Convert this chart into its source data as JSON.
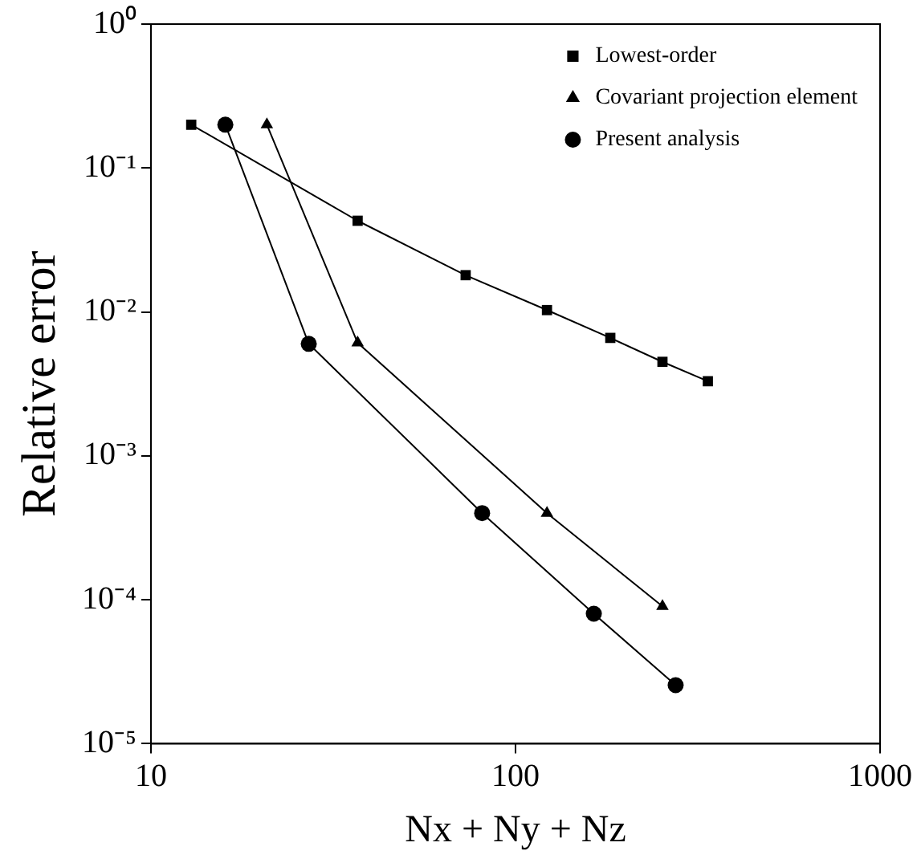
{
  "chart_data": {
    "type": "line",
    "xlabel": "Nx + Ny + Nz",
    "ylabel": "Relative error",
    "log": "xy",
    "grid": false,
    "legend": "top right",
    "line_style": "solid",
    "xlim": [
      10,
      1000
    ],
    "xticks": [
      10,
      100,
      1000
    ],
    "ylim": [
      1e-05,
      1
    ],
    "yticks": [
      {
        "value": 1,
        "label": "10⁰"
      },
      {
        "value": 0.1,
        "label": "10⁻¹"
      },
      {
        "value": 0.01,
        "label": "10⁻²"
      },
      {
        "value": 0.001,
        "label": "10⁻³"
      },
      {
        "value": 0.0001,
        "label": "10⁻⁴"
      },
      {
        "value": 1e-05,
        "label": "10⁻⁵"
      }
    ],
    "series": [
      {
        "name": "Lowest-order",
        "color": "#000000",
        "marker": "square",
        "x": [
          12.9,
          36.9,
          73,
          122,
          182,
          253,
          337
        ],
        "values": [
          0.2,
          0.043,
          0.018,
          0.0103,
          0.0066,
          0.0045,
          0.0033
        ]
      },
      {
        "name": "Covariant projection element",
        "color": "#000000",
        "marker": "triangle",
        "x": [
          20.8,
          36.9,
          122,
          253
        ],
        "values": [
          0.2,
          0.0061,
          0.0004,
          9e-05
        ]
      },
      {
        "name": "Present analysis",
        "color": "#000000",
        "marker": "circle",
        "x": [
          16,
          27.1,
          81,
          164,
          275
        ],
        "values": [
          0.2,
          0.006,
          0.0004,
          8e-05,
          2.55e-05
        ]
      }
    ]
  }
}
